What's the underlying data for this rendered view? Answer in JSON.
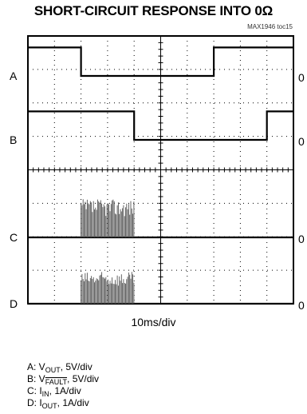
{
  "chart_data": {
    "type": "line",
    "title": "SHORT-CIRCUIT RESPONSE INTO 0Ω",
    "figure_tag": "MAX1946 toc15",
    "xlabel": "10ms/div",
    "x_divisions": 10,
    "y_divisions": 8,
    "grid": true,
    "zero_label": "0",
    "traces": [
      {
        "label": "A",
        "legend_prefix": "A: V",
        "legend_sub": "OUT",
        "legend_suffix": ", 5V/div",
        "divs": [
          {
            "x": 0,
            "y": 0.85
          },
          {
            "x": 4.0,
            "y": 0.85
          },
          {
            "x": 4.0,
            "y": 0
          },
          {
            "x": 14.0,
            "y": 0
          },
          {
            "x": 14.0,
            "y": 0.85
          },
          {
            "x": 20.0,
            "y": 0.85
          }
        ]
      },
      {
        "label": "B",
        "legend_prefix": "B: V",
        "legend_sub": "FAULT",
        "legend_sub_overline": true,
        "legend_suffix": ", 5V/div",
        "divs": [
          {
            "x": 0,
            "y": 0.85
          },
          {
            "x": 8.0,
            "y": 0.85
          },
          {
            "x": 8.0,
            "y": 0
          },
          {
            "x": 18.0,
            "y": 0
          },
          {
            "x": 18.0,
            "y": 0.85
          },
          {
            "x": 20.0,
            "y": 0.85
          }
        ]
      },
      {
        "label": "C",
        "legend_prefix": "C: I",
        "legend_sub": "IN",
        "legend_suffix": ", 1A/div",
        "divs": [
          {
            "x": 0,
            "y": 0
          },
          {
            "x": 4.0,
            "y": 0
          },
          {
            "x": 8.0,
            "y": 0
          },
          {
            "x": 20.0,
            "y": 0
          }
        ],
        "pulse_start": 4.0,
        "pulse_end": 8.0,
        "pulse_peak": 1.15
      },
      {
        "label": "D",
        "legend_prefix": "D: I",
        "legend_sub": "OUT",
        "legend_suffix": ", 1A/div",
        "divs": [
          {
            "x": 0,
            "y": 0
          },
          {
            "x": 4.0,
            "y": 0
          },
          {
            "x": 8.0,
            "y": 0
          },
          {
            "x": 20.0,
            "y": 0
          }
        ],
        "pulse_start": 4.0,
        "pulse_end": 8.0,
        "pulse_peak": 0.95
      }
    ]
  }
}
